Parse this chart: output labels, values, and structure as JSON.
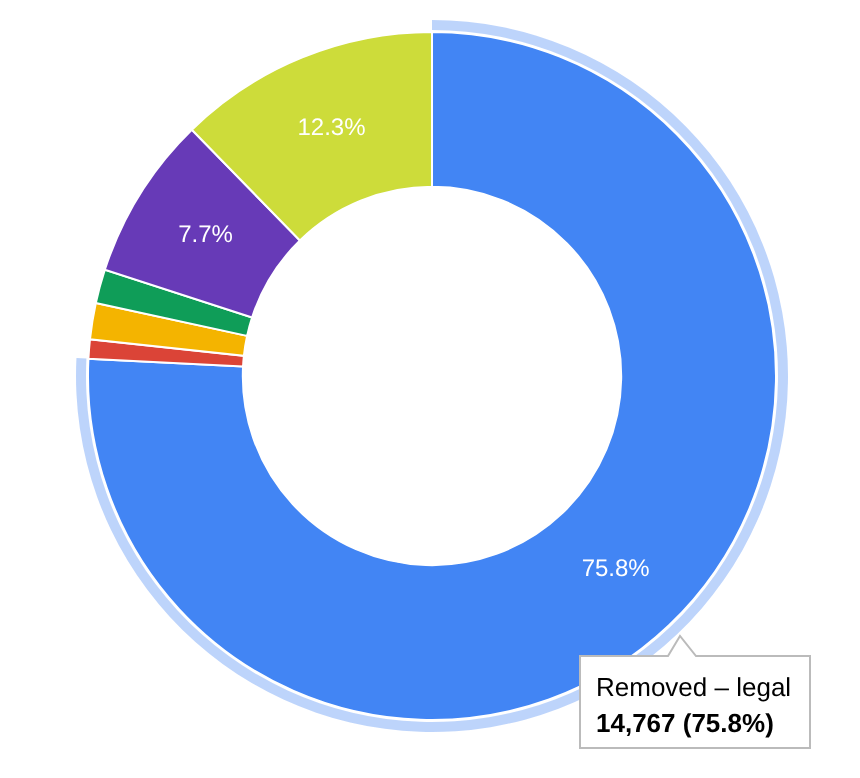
{
  "chart_data": {
    "type": "donut",
    "categories": [
      "Removed – legal",
      null,
      null,
      null,
      null,
      null
    ],
    "values": [
      75.8,
      0.9,
      1.7,
      1.6,
      7.7,
      12.3
    ],
    "colors": [
      "#4285f4",
      "#db4437",
      "#f4b400",
      "#0f9d58",
      "#673ab7",
      "#cddc3a"
    ],
    "value_labels": [
      "75.8%",
      null,
      null,
      null,
      "7.7%",
      "12.3%"
    ],
    "annotations": [
      "14,767 (75.8%)"
    ],
    "legend": false
  }
}
